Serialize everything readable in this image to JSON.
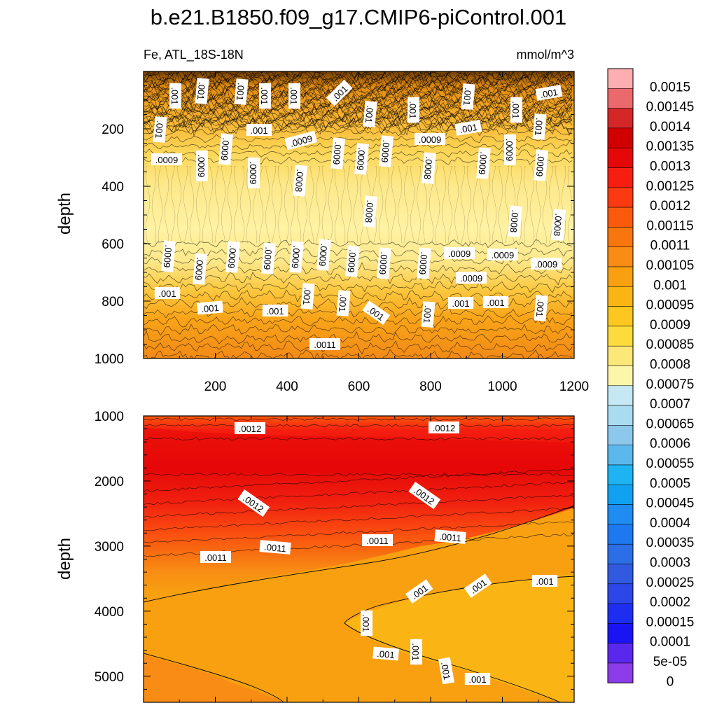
{
  "chart_data": {
    "type": "heatmap",
    "title": "b.e21.B1850.f09_g17.CMIP6-piControl.001",
    "variable_label": "Fe, ATL_18S-18N",
    "units": "mmol/m^3",
    "panels": [
      {
        "name": "upper",
        "ylabel": "depth",
        "xlim": [
          0,
          1200
        ],
        "ylim": [
          0,
          1000
        ],
        "y_reversed": true,
        "xticks": [
          200,
          400,
          600,
          800,
          1000,
          1200
        ],
        "yticks": [
          200,
          400,
          600,
          800,
          1000
        ],
        "profile": [
          {
            "depth": 0,
            "value": 0.00105
          },
          {
            "depth": 100,
            "value": 0.001
          },
          {
            "depth": 180,
            "value": 0.00095
          },
          {
            "depth": 260,
            "value": 0.00088
          },
          {
            "depth": 350,
            "value": 0.00082
          },
          {
            "depth": 450,
            "value": 0.00079
          },
          {
            "depth": 550,
            "value": 0.0008
          },
          {
            "depth": 650,
            "value": 0.00086
          },
          {
            "depth": 750,
            "value": 0.00094
          },
          {
            "depth": 850,
            "value": 0.00101
          },
          {
            "depth": 1000,
            "value": 0.00108
          }
        ],
        "contour_labels": [
          ".001",
          ".0009",
          ".0008",
          ".0011"
        ]
      },
      {
        "name": "lower",
        "ylabel": "depth",
        "xlim": [
          0,
          1200
        ],
        "ylim": [
          1000,
          5400
        ],
        "y_reversed": true,
        "yticks": [
          1000,
          2000,
          3000,
          4000,
          5000
        ],
        "profile": [
          {
            "depth": 1000,
            "value": 0.00115
          },
          {
            "depth": 1300,
            "value": 0.00122
          },
          {
            "depth": 1700,
            "value": 0.00126
          },
          {
            "depth": 2200,
            "value": 0.00121
          },
          {
            "depth": 2700,
            "value": 0.00113
          },
          {
            "depth": 3200,
            "value": 0.00107
          },
          {
            "depth": 3800,
            "value": 0.00103
          },
          {
            "depth": 4500,
            "value": 0.001
          },
          {
            "depth": 5400,
            "value": 0.001
          }
        ],
        "contour_labels": [
          ".0012",
          ".0011",
          ".001"
        ]
      }
    ],
    "colorbar": {
      "labels": [
        "0.0015",
        "0.00145",
        "0.0014",
        "0.00135",
        "0.0013",
        "0.00125",
        "0.0012",
        "0.00115",
        "0.0011",
        "0.00105",
        "0.001",
        "0.00095",
        "0.0009",
        "0.00085",
        "0.0008",
        "0.00075",
        "0.0007",
        "0.00065",
        "0.0006",
        "0.00055",
        "0.0005",
        "0.00045",
        "0.0004",
        "0.00035",
        "0.0003",
        "0.00025",
        "0.0002",
        "0.00015",
        "0.0001",
        "5e-05",
        "0"
      ],
      "colors": [
        "#fcaeb0",
        "#ea6a6c",
        "#d42828",
        "#d00000",
        "#e50808",
        "#f51e10",
        "#fa3a10",
        "#fa5a0c",
        "#f8760e",
        "#f88c14",
        "#f8a010",
        "#fab414",
        "#fcc820",
        "#fcdc3c",
        "#fce878",
        "#fcf6aa",
        "#c6e8f4",
        "#aadcf0",
        "#8cc8ec",
        "#5ab8ec",
        "#1eb4f4",
        "#10a2f0",
        "#1e8cf0",
        "#1e78f0",
        "#2c6ee6",
        "#325ae0",
        "#2c46e8",
        "#1e2ef0",
        "#1a14f4",
        "#5a28ec",
        "#8c3ce8"
      ]
    }
  }
}
